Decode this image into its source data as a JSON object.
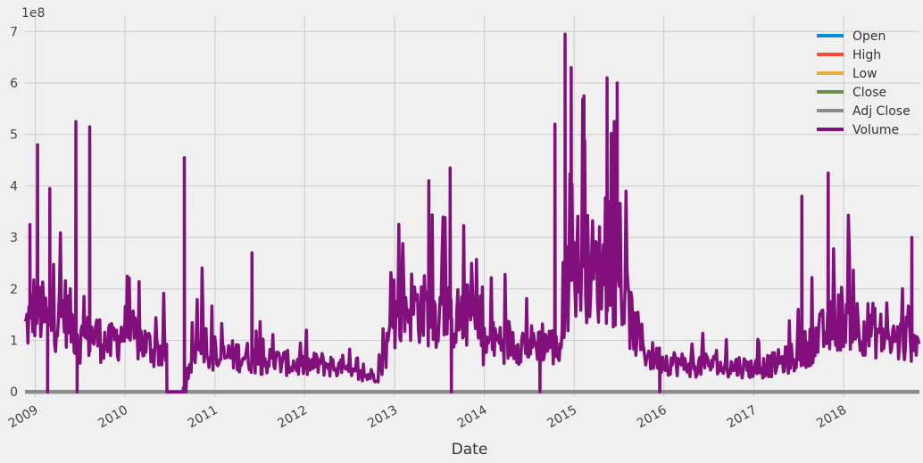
{
  "chart_data": {
    "type": "line",
    "title": "",
    "xlabel": "Date",
    "ylabel": "",
    "y_offset_label": "1e8",
    "ylim": [
      -0.1,
      7.3
    ],
    "xlim": [
      "2008-11-20",
      "2018-11-05"
    ],
    "yticks": [
      0,
      1,
      2,
      3,
      4,
      5,
      6,
      7
    ],
    "ytick_labels": [
      "0",
      "1",
      "2",
      "3",
      "4",
      "5",
      "6",
      "7"
    ],
    "xticks": [
      "2009-01-01",
      "2010-01-01",
      "2011-01-01",
      "2012-01-01",
      "2013-01-01",
      "2014-01-01",
      "2015-01-01",
      "2016-01-01",
      "2017-01-01",
      "2018-01-01"
    ],
    "xtick_labels": [
      "2009",
      "2010",
      "2011",
      "2012",
      "2013",
      "2014",
      "2015",
      "2016",
      "2017",
      "2018"
    ],
    "grid": true,
    "legend_position": "top-right",
    "x": [
      "2008-11-20",
      "2009-01-01",
      "2009-03-01",
      "2009-05-01",
      "2009-07-01",
      "2009-09-01",
      "2009-11-01",
      "2010-01-01",
      "2010-03-01",
      "2010-05-01",
      "2010-07-01",
      "2010-09-01",
      "2010-11-01",
      "2011-01-01",
      "2011-03-01",
      "2011-05-01",
      "2011-07-01",
      "2011-09-01",
      "2011-11-01",
      "2012-01-01",
      "2012-03-01",
      "2012-05-01",
      "2012-07-01",
      "2012-09-01",
      "2012-11-01",
      "2013-01-01",
      "2013-03-01",
      "2013-05-01",
      "2013-07-01",
      "2013-09-01",
      "2013-11-01",
      "2014-01-01",
      "2014-03-01",
      "2014-05-01",
      "2014-07-01",
      "2014-09-01",
      "2014-11-01",
      "2015-01-01",
      "2015-03-01",
      "2015-05-01",
      "2015-07-01",
      "2015-09-01",
      "2015-11-01",
      "2016-01-01",
      "2016-03-01",
      "2016-05-01",
      "2016-07-01",
      "2016-09-01",
      "2016-11-01",
      "2017-01-01",
      "2017-03-01",
      "2017-05-01",
      "2017-07-01",
      "2017-09-01",
      "2017-11-01",
      "2018-01-01",
      "2018-03-01",
      "2018-05-01",
      "2018-07-01",
      "2018-09-01",
      "2018-11-05"
    ],
    "series": [
      {
        "name": "Open",
        "color": "#008fd5",
        "values": [
          0.0,
          0.0,
          0.0,
          0.0,
          0.0,
          0.0,
          0.0,
          0.0,
          0.0,
          0.0,
          0.0,
          0.0,
          0.0,
          0.0,
          0.0,
          0.0,
          0.0,
          0.0,
          0.0,
          0.0,
          0.0,
          0.0,
          0.0,
          0.0,
          0.0,
          0.0,
          0.0,
          0.0,
          0.0,
          0.0,
          0.0,
          0.0,
          0.0,
          0.0,
          0.0,
          0.0,
          0.0,
          0.0,
          0.0,
          0.0,
          0.0,
          0.0,
          0.0,
          0.0,
          0.0,
          0.0,
          0.0,
          0.0,
          0.0,
          0.0,
          0.0,
          0.0,
          0.0,
          0.0,
          0.0,
          0.0,
          0.0,
          0.0,
          0.0,
          0.0,
          0.0
        ]
      },
      {
        "name": "High",
        "color": "#fc4f30",
        "values": [
          0.0,
          0.0,
          0.0,
          0.0,
          0.0,
          0.0,
          0.0,
          0.0,
          0.0,
          0.0,
          0.0,
          0.0,
          0.0,
          0.0,
          0.0,
          0.0,
          0.0,
          0.0,
          0.0,
          0.0,
          0.0,
          0.0,
          0.0,
          0.0,
          0.0,
          0.0,
          0.0,
          0.0,
          0.0,
          0.0,
          0.0,
          0.0,
          0.0,
          0.0,
          0.0,
          0.0,
          0.0,
          0.0,
          0.0,
          0.0,
          0.0,
          0.0,
          0.0,
          0.0,
          0.0,
          0.0,
          0.0,
          0.0,
          0.0,
          0.0,
          0.0,
          0.0,
          0.0,
          0.0,
          0.0,
          0.0,
          0.0,
          0.0,
          0.0,
          0.0,
          0.0
        ]
      },
      {
        "name": "Low",
        "color": "#e5ae38",
        "values": [
          0.0,
          0.0,
          0.0,
          0.0,
          0.0,
          0.0,
          0.0,
          0.0,
          0.0,
          0.0,
          0.0,
          0.0,
          0.0,
          0.0,
          0.0,
          0.0,
          0.0,
          0.0,
          0.0,
          0.0,
          0.0,
          0.0,
          0.0,
          0.0,
          0.0,
          0.0,
          0.0,
          0.0,
          0.0,
          0.0,
          0.0,
          0.0,
          0.0,
          0.0,
          0.0,
          0.0,
          0.0,
          0.0,
          0.0,
          0.0,
          0.0,
          0.0,
          0.0,
          0.0,
          0.0,
          0.0,
          0.0,
          0.0,
          0.0,
          0.0,
          0.0,
          0.0,
          0.0,
          0.0,
          0.0,
          0.0,
          0.0,
          0.0,
          0.0,
          0.0,
          0.0
        ]
      },
      {
        "name": "Close",
        "color": "#6d904f",
        "values": [
          0.0,
          0.0,
          0.0,
          0.0,
          0.0,
          0.0,
          0.0,
          0.0,
          0.0,
          0.0,
          0.0,
          0.0,
          0.0,
          0.0,
          0.0,
          0.0,
          0.0,
          0.0,
          0.0,
          0.0,
          0.0,
          0.0,
          0.0,
          0.0,
          0.0,
          0.0,
          0.0,
          0.0,
          0.0,
          0.0,
          0.0,
          0.0,
          0.0,
          0.0,
          0.0,
          0.0,
          0.0,
          0.0,
          0.0,
          0.0,
          0.0,
          0.0,
          0.0,
          0.0,
          0.0,
          0.0,
          0.0,
          0.0,
          0.0,
          0.0,
          0.0,
          0.0,
          0.0,
          0.0,
          0.0,
          0.0,
          0.0,
          0.0,
          0.0,
          0.0,
          0.0
        ]
      },
      {
        "name": "Adj Close",
        "color": "#8b8b8b",
        "values": [
          0.0,
          0.0,
          0.0,
          0.0,
          0.0,
          0.0,
          0.0,
          0.0,
          0.0,
          0.0,
          0.0,
          0.0,
          0.0,
          0.0,
          0.0,
          0.0,
          0.0,
          0.0,
          0.0,
          0.0,
          0.0,
          0.0,
          0.0,
          0.0,
          0.0,
          0.0,
          0.0,
          0.0,
          0.0,
          0.0,
          0.0,
          0.0,
          0.0,
          0.0,
          0.0,
          0.0,
          0.0,
          0.0,
          0.0,
          0.0,
          0.0,
          0.0,
          0.0,
          0.0,
          0.0,
          0.0,
          0.0,
          0.0,
          0.0,
          0.0,
          0.0,
          0.0,
          0.0,
          0.0,
          0.0,
          0.0,
          0.0,
          0.0,
          0.0,
          0.0,
          0.0
        ]
      },
      {
        "name": "Volume",
        "color": "#810f7c",
        "values": [
          1.2,
          1.7,
          1.3,
          1.6,
          1.0,
          1.1,
          0.9,
          1.2,
          1.0,
          0.8,
          0.8,
          0.0,
          1.2,
          0.6,
          0.7,
          0.7,
          0.6,
          0.6,
          0.55,
          0.5,
          0.55,
          0.5,
          0.35,
          0.3,
          0.35,
          1.4,
          1.7,
          1.6,
          1.5,
          1.4,
          1.5,
          0.9,
          1.0,
          1.0,
          0.9,
          1.0,
          0.8,
          2.5,
          2.4,
          2.3,
          2.2,
          1.2,
          0.7,
          0.6,
          0.55,
          0.5,
          0.55,
          0.45,
          0.5,
          0.45,
          0.5,
          0.6,
          0.7,
          1.0,
          1.2,
          1.5,
          1.3,
          1.2,
          1.0,
          1.0,
          1.1
        ]
      }
    ],
    "volume_spikes": [
      {
        "x": "2008-12-10",
        "y": 3.25
      },
      {
        "x": "2009-01-10",
        "y": 4.8
      },
      {
        "x": "2009-03-01",
        "y": 3.95
      },
      {
        "x": "2009-06-15",
        "y": 5.25
      },
      {
        "x": "2009-08-10",
        "y": 5.15
      },
      {
        "x": "2010-08-30",
        "y": 4.55
      },
      {
        "x": "2011-06-01",
        "y": 2.7
      },
      {
        "x": "2013-05-20",
        "y": 4.1
      },
      {
        "x": "2013-08-15",
        "y": 4.35
      },
      {
        "x": "2014-10-15",
        "y": 5.2
      },
      {
        "x": "2014-11-25",
        "y": 6.95
      },
      {
        "x": "2014-12-20",
        "y": 6.3
      },
      {
        "x": "2015-02-10",
        "y": 5.75
      },
      {
        "x": "2015-05-15",
        "y": 6.1
      },
      {
        "x": "2015-06-25",
        "y": 6.0
      },
      {
        "x": "2017-07-15",
        "y": 3.8
      },
      {
        "x": "2017-10-30",
        "y": 4.25
      },
      {
        "x": "2018-10-05",
        "y": 3.0
      }
    ],
    "volume_zero_dips": [
      "2009-02-20",
      "2009-06-20",
      "2010-06-20",
      "2010-09-05",
      "2013-08-20",
      "2014-08-15",
      "2015-12-15"
    ]
  }
}
